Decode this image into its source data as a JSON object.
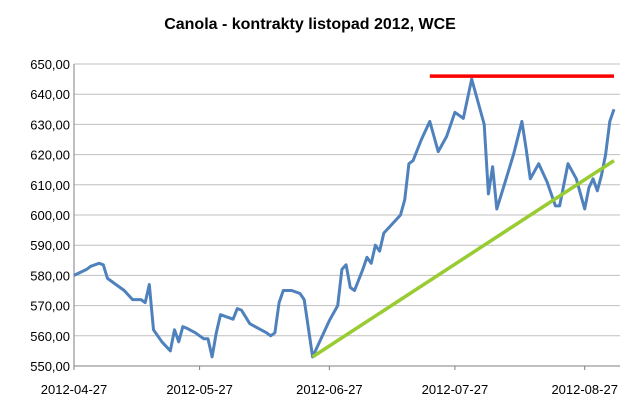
{
  "chart_data": {
    "type": "line",
    "title": "Canola - kontrakty listopad 2012, WCE",
    "xlabel": "",
    "ylabel": "",
    "ylim": [
      550,
      650
    ],
    "yticks": [
      "550,00",
      "560,00",
      "570,00",
      "580,00",
      "590,00",
      "600,00",
      "610,00",
      "620,00",
      "630,00",
      "640,00",
      "650,00"
    ],
    "xlim": [
      "2012-04-27",
      "2012-09-03"
    ],
    "xticks": [
      "2012-04-27",
      "2012-05-27",
      "2012-06-27",
      "2012-07-27",
      "2012-08-27"
    ],
    "grid": "horizontal",
    "legend": "none",
    "series": [
      {
        "color": "#4F81BD",
        "points": [
          [
            "2012-04-27",
            580
          ],
          [
            "2012-04-30",
            582
          ],
          [
            "2012-05-01",
            583
          ],
          [
            "2012-05-03",
            584
          ],
          [
            "2012-05-04",
            583.5
          ],
          [
            "2012-05-05",
            579
          ],
          [
            "2012-05-07",
            577
          ],
          [
            "2012-05-09",
            575
          ],
          [
            "2012-05-11",
            572
          ],
          [
            "2012-05-13",
            572
          ],
          [
            "2012-05-14",
            571
          ],
          [
            "2012-05-15",
            577
          ],
          [
            "2012-05-16",
            562
          ],
          [
            "2012-05-17",
            560
          ],
          [
            "2012-05-18",
            558
          ],
          [
            "2012-05-20",
            555
          ],
          [
            "2012-05-21",
            562
          ],
          [
            "2012-05-22",
            558
          ],
          [
            "2012-05-23",
            563
          ],
          [
            "2012-05-24",
            562.5
          ],
          [
            "2012-05-26",
            561
          ],
          [
            "2012-05-28",
            559
          ],
          [
            "2012-05-29",
            559
          ],
          [
            "2012-05-30",
            553
          ],
          [
            "2012-05-31",
            561
          ],
          [
            "2012-06-01",
            567
          ],
          [
            "2012-06-03",
            566
          ],
          [
            "2012-06-04",
            565.5
          ],
          [
            "2012-06-05",
            569
          ],
          [
            "2012-06-06",
            568.5
          ],
          [
            "2012-06-08",
            564
          ],
          [
            "2012-06-10",
            562.5
          ],
          [
            "2012-06-12",
            561
          ],
          [
            "2012-06-13",
            560
          ],
          [
            "2012-06-14",
            561
          ],
          [
            "2012-06-15",
            571
          ],
          [
            "2012-06-16",
            575
          ],
          [
            "2012-06-18",
            575
          ],
          [
            "2012-06-20",
            574
          ],
          [
            "2012-06-21",
            572
          ],
          [
            "2012-06-23",
            553
          ],
          [
            "2012-06-25",
            559
          ],
          [
            "2012-06-27",
            565
          ],
          [
            "2012-06-29",
            570
          ],
          [
            "2012-06-30",
            582
          ],
          [
            "2012-07-01",
            583.5
          ],
          [
            "2012-07-02",
            576
          ],
          [
            "2012-07-03",
            575
          ],
          [
            "2012-07-05",
            582
          ],
          [
            "2012-07-06",
            586
          ],
          [
            "2012-07-07",
            584
          ],
          [
            "2012-07-08",
            590
          ],
          [
            "2012-07-09",
            588
          ],
          [
            "2012-07-10",
            594
          ],
          [
            "2012-07-12",
            597
          ],
          [
            "2012-07-14",
            600
          ],
          [
            "2012-07-15",
            605
          ],
          [
            "2012-07-16",
            617
          ],
          [
            "2012-07-17",
            618
          ],
          [
            "2012-07-19",
            625
          ],
          [
            "2012-07-21",
            631
          ],
          [
            "2012-07-22",
            626
          ],
          [
            "2012-07-23",
            621
          ],
          [
            "2012-07-25",
            626
          ],
          [
            "2012-07-27",
            634
          ],
          [
            "2012-07-29",
            632
          ],
          [
            "2012-07-31",
            645
          ],
          [
            "2012-08-03",
            630
          ],
          [
            "2012-08-04",
            607
          ],
          [
            "2012-08-05",
            616
          ],
          [
            "2012-08-06",
            602
          ],
          [
            "2012-08-08",
            611
          ],
          [
            "2012-08-10",
            620
          ],
          [
            "2012-08-12",
            631
          ],
          [
            "2012-08-13",
            622
          ],
          [
            "2012-08-14",
            612
          ],
          [
            "2012-08-16",
            617
          ],
          [
            "2012-08-18",
            611
          ],
          [
            "2012-08-20",
            603
          ],
          [
            "2012-08-21",
            603
          ],
          [
            "2012-08-23",
            617
          ],
          [
            "2012-08-25",
            612
          ],
          [
            "2012-08-27",
            602
          ],
          [
            "2012-08-28",
            609
          ],
          [
            "2012-08-29",
            612
          ],
          [
            "2012-08-30",
            608
          ],
          [
            "2012-08-31",
            613
          ],
          [
            "2012-09-01",
            620
          ],
          [
            "2012-09-02",
            631
          ],
          [
            "2012-09-03",
            635
          ]
        ]
      },
      {
        "color": "#FF0000",
        "points": [
          [
            "2012-07-21",
            646
          ],
          [
            "2012-09-03",
            646
          ]
        ]
      },
      {
        "color": "#99CC33",
        "points": [
          [
            "2012-06-23",
            553
          ],
          [
            "2012-09-03",
            618
          ]
        ]
      }
    ]
  }
}
